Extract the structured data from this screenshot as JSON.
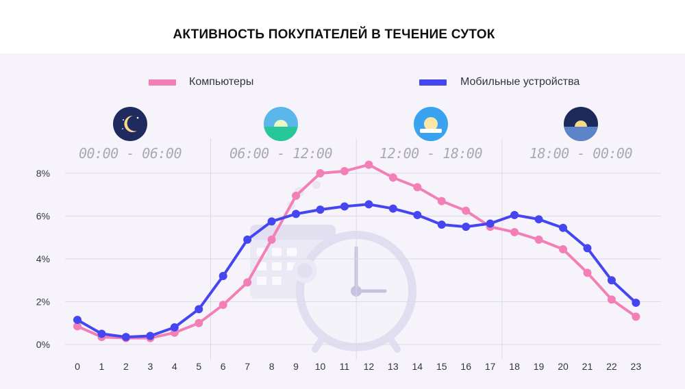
{
  "title": "АКТИВНОСТЬ ПОКУПАТЕЛЕЙ В ТЕЧЕНИЕ СУТОК",
  "colors": {
    "computers": "#f27fb5",
    "mobile": "#4646f0",
    "grid": "#dcdae4",
    "background": "#f7f3fb"
  },
  "periods": [
    {
      "label": "00:00 - 06:00",
      "icon": "moon-icon"
    },
    {
      "label": "06:00 - 12:00",
      "icon": "sunrise-icon"
    },
    {
      "label": "12:00 - 18:00",
      "icon": "sun-icon"
    },
    {
      "label": "18:00 - 00:00",
      "icon": "sunset-icon"
    }
  ],
  "chart_data": {
    "type": "line",
    "x": [
      0,
      1,
      2,
      3,
      4,
      5,
      6,
      7,
      8,
      9,
      10,
      11,
      12,
      13,
      14,
      15,
      16,
      17,
      18,
      19,
      20,
      21,
      22,
      23
    ],
    "y_ticks": [
      "0%",
      "2%",
      "4%",
      "6%",
      "8%"
    ],
    "ylim": [
      0,
      8
    ],
    "legend_position": "top",
    "grid": true,
    "series": [
      {
        "name": "Компьютеры",
        "color": "#f27fb5",
        "values": [
          0.85,
          0.35,
          0.3,
          0.3,
          0.55,
          1.0,
          1.85,
          2.9,
          4.9,
          6.95,
          8.0,
          8.1,
          8.4,
          7.8,
          7.35,
          6.7,
          6.25,
          5.5,
          5.25,
          4.9,
          4.45,
          3.35,
          2.1,
          1.3
        ]
      },
      {
        "name": "Мобильные устройства",
        "color": "#4646f0",
        "values": [
          1.15,
          0.5,
          0.35,
          0.4,
          0.8,
          1.65,
          3.2,
          4.9,
          5.75,
          6.1,
          6.3,
          6.45,
          6.55,
          6.35,
          6.05,
          5.6,
          5.5,
          5.65,
          6.05,
          5.85,
          5.45,
          4.5,
          3.0,
          1.95
        ]
      }
    ]
  }
}
